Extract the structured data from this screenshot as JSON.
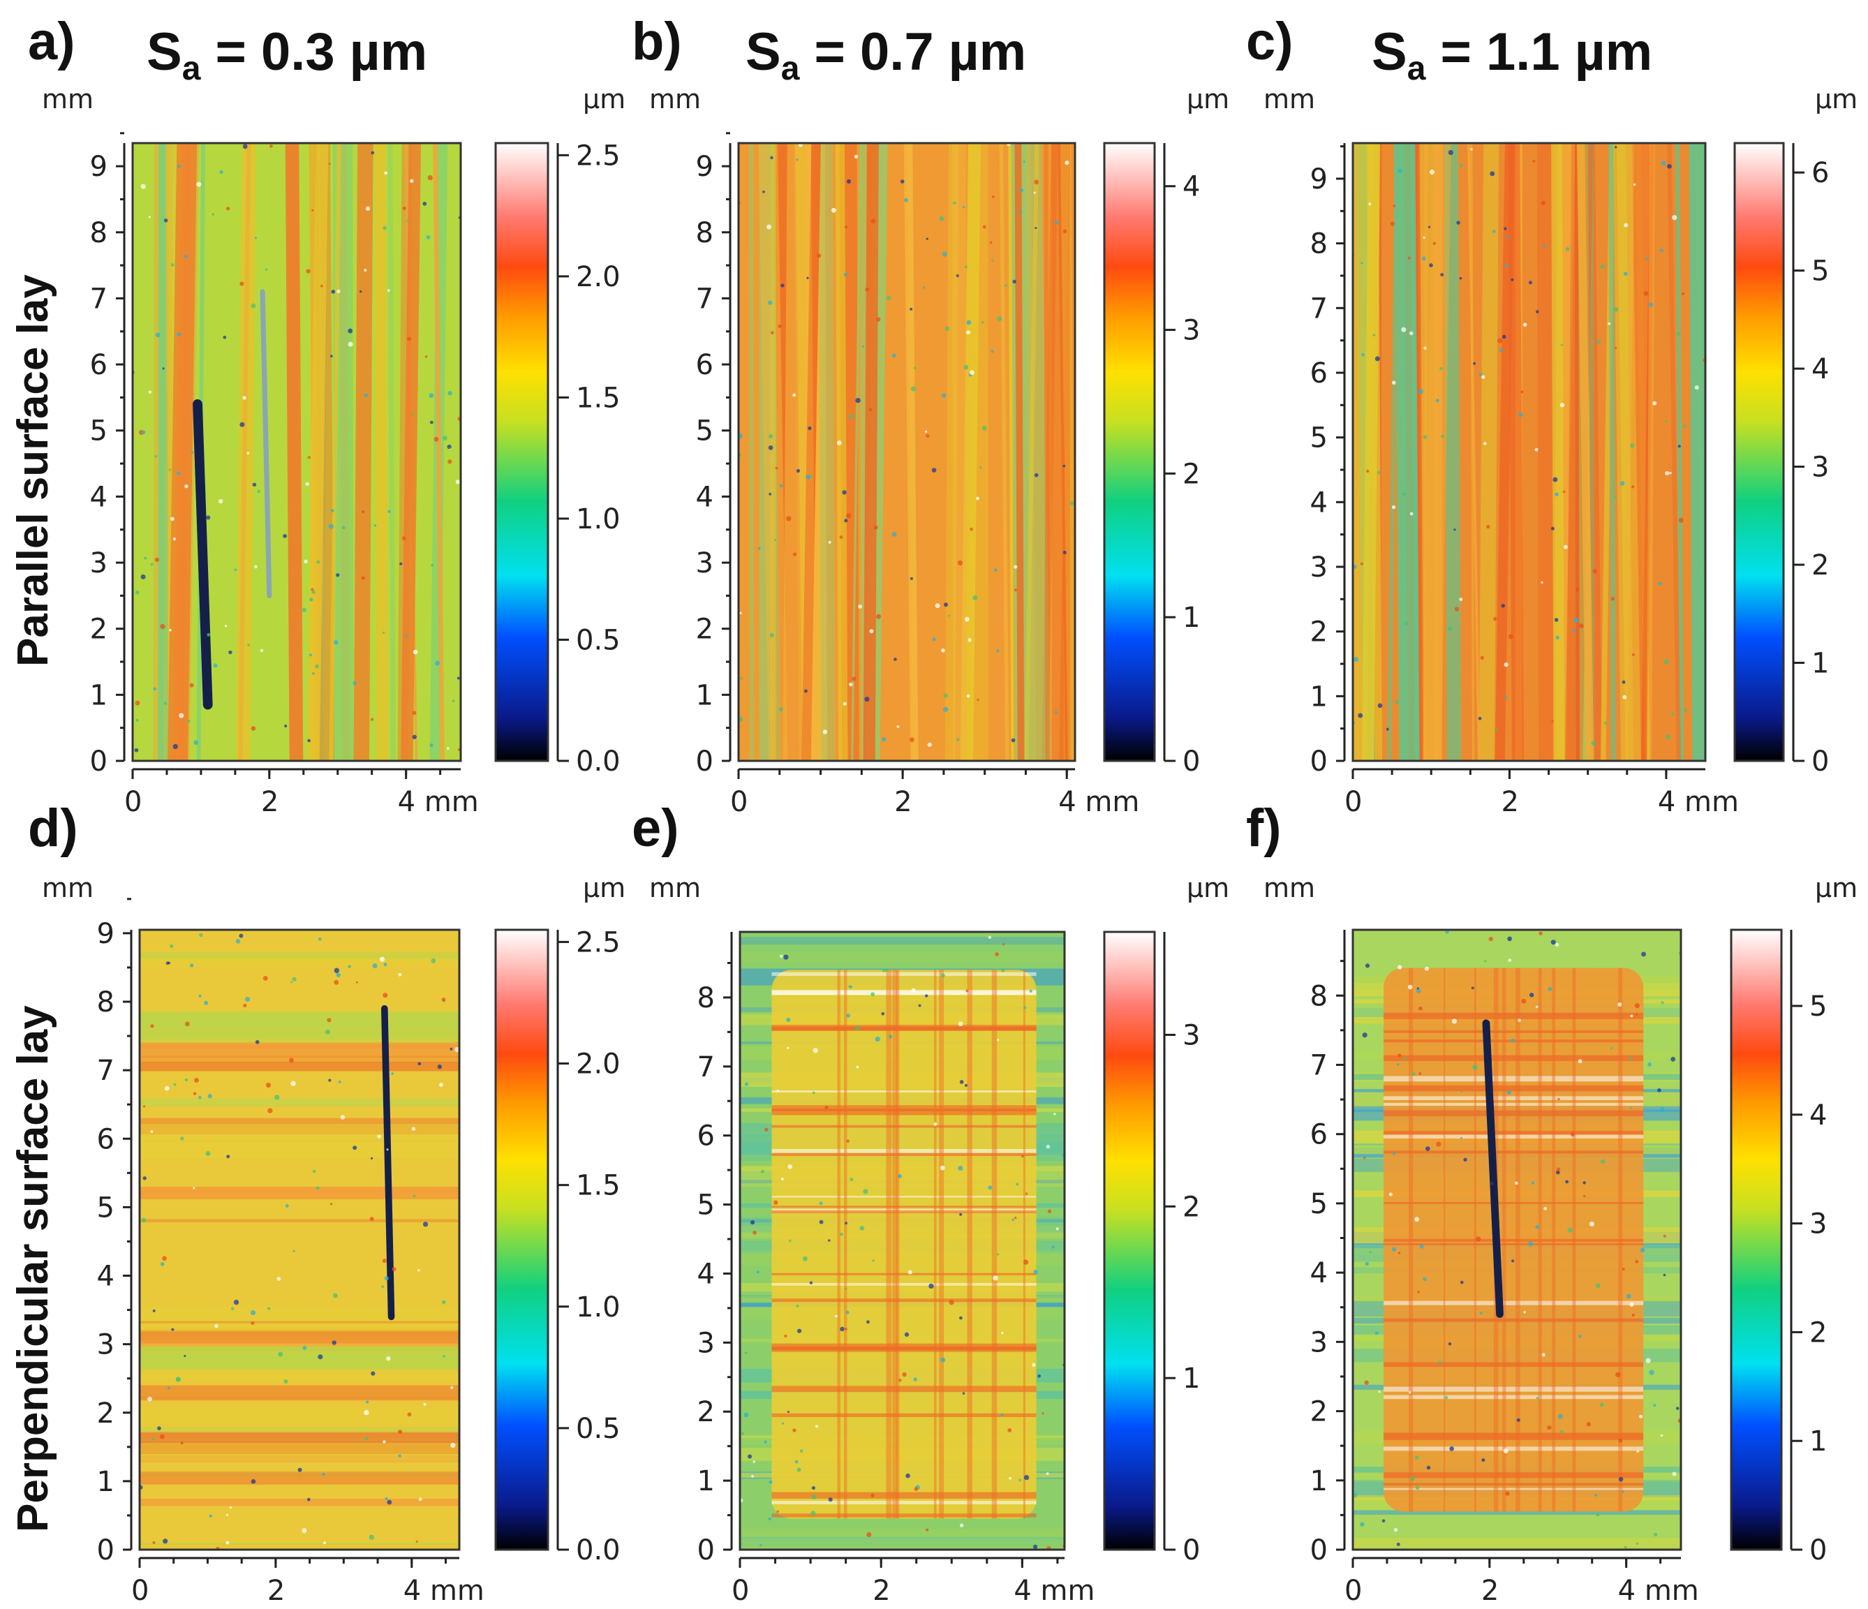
{
  "figure": {
    "row_labels": [
      "Parallel surface lay",
      "Perpendicular surface lay"
    ],
    "x_unit": "mm",
    "y_unit": "mm",
    "z_unit": "µm"
  },
  "chart_data": [
    {
      "type": "heatmap",
      "panel": "a)",
      "title": {
        "symbol": "S",
        "sub": "a",
        "rest": " = 0.3 µm"
      },
      "xlim": [
        0,
        4.8
      ],
      "ylim": [
        0,
        9.35
      ],
      "xticks": [
        "0",
        "2",
        "4 mm"
      ],
      "yticks": [
        "0",
        "1",
        "2",
        "3",
        "4",
        "5",
        "6",
        "7",
        "8",
        "9"
      ],
      "colorbar": {
        "min": 0.0,
        "max": 2.55,
        "ticks": [
          "0.0",
          "0.5",
          "1.0",
          "1.5",
          "2.0",
          "2.5"
        ],
        "tick_values": [
          0,
          0.5,
          1.0,
          1.5,
          2.0,
          2.5
        ]
      },
      "base_color": "#b6d83e",
      "features": [
        {
          "kind": "bands",
          "orientation": "vertical",
          "colors": [
            "#f07a2a",
            "#e9c12a",
            "#78d07a",
            "#f4a13a"
          ],
          "count": 28
        },
        {
          "kind": "scratch",
          "from": [
            0.95,
            5.4
          ],
          "to": [
            1.1,
            0.85
          ],
          "color": "#14204a",
          "width": 2.3
        },
        {
          "kind": "scratch",
          "from": [
            1.9,
            7.1
          ],
          "to": [
            2.0,
            2.5
          ],
          "color": "#8aa6b4",
          "width": 1.2
        }
      ]
    },
    {
      "type": "heatmap",
      "panel": "b)",
      "title": {
        "symbol": "S",
        "sub": "a",
        "rest": " = 0.7 µm"
      },
      "xlim": [
        0,
        4.1
      ],
      "ylim": [
        0,
        9.35
      ],
      "xticks": [
        "0",
        "2",
        "4 mm"
      ],
      "yticks": [
        "0",
        "1",
        "2",
        "3",
        "4",
        "5",
        "6",
        "7",
        "8",
        "9"
      ],
      "colorbar": {
        "min": 0,
        "max": 4.3,
        "ticks": [
          "0",
          "1",
          "2",
          "3",
          "4"
        ],
        "tick_values": [
          0,
          1,
          2,
          3,
          4
        ]
      },
      "base_color": "#ef9a32",
      "features": [
        {
          "kind": "bands",
          "orientation": "vertical",
          "colors": [
            "#ee6a22",
            "#e8c82c",
            "#9ac96a",
            "#f2b43a"
          ],
          "count": 40
        }
      ]
    },
    {
      "type": "heatmap",
      "panel": "c)",
      "title": {
        "symbol": "S",
        "sub": "a",
        "rest": " = 1.1 µm"
      },
      "xlim": [
        0,
        4.5
      ],
      "ylim": [
        0,
        9.55
      ],
      "xticks": [
        "0",
        "2",
        "4 mm"
      ],
      "yticks": [
        "0",
        "1",
        "2",
        "3",
        "4",
        "5",
        "6",
        "7",
        "8",
        "9"
      ],
      "colorbar": {
        "min": 0,
        "max": 6.3,
        "ticks": [
          "0",
          "1",
          "2",
          "3",
          "4",
          "5",
          "6"
        ],
        "tick_values": [
          0,
          1,
          2,
          3,
          4,
          5,
          6
        ]
      },
      "base_color": "#ec8a30",
      "features": [
        {
          "kind": "bands",
          "orientation": "vertical",
          "colors": [
            "#ee5f22",
            "#e2c82e",
            "#62c48a",
            "#f3aa36"
          ],
          "count": 44
        }
      ]
    },
    {
      "type": "heatmap",
      "panel": "d)",
      "title": null,
      "xlim": [
        0,
        4.7
      ],
      "ylim": [
        0,
        9.05
      ],
      "xticks": [
        "0",
        "2",
        "4 mm"
      ],
      "yticks": [
        "0",
        "1",
        "2",
        "3",
        "4",
        "5",
        "6",
        "7",
        "8",
        "9"
      ],
      "colorbar": {
        "min": 0.0,
        "max": 2.55,
        "ticks": [
          "0.0",
          "0.5",
          "1.0",
          "1.5",
          "2.0",
          "2.5"
        ],
        "tick_values": [
          0,
          0.5,
          1.0,
          1.5,
          2.0,
          2.5
        ]
      },
      "base_color": "#e9c93a",
      "features": [
        {
          "kind": "bands",
          "orientation": "horizontal",
          "colors": [
            "#ef7c2c",
            "#e6cf36",
            "#f29b38",
            "#b8d64a"
          ],
          "count": 40
        },
        {
          "kind": "scratch",
          "from": [
            3.6,
            7.9
          ],
          "to": [
            3.7,
            3.4
          ],
          "color": "#14204a",
          "width": 1.6
        }
      ]
    },
    {
      "type": "heatmap",
      "panel": "e)",
      "title": null,
      "xlim": [
        0,
        4.6
      ],
      "ylim": [
        0,
        8.95
      ],
      "xticks": [
        "0",
        "2",
        "4 mm"
      ],
      "yticks": [
        "0",
        "1",
        "2",
        "3",
        "4",
        "5",
        "6",
        "7",
        "8"
      ],
      "colorbar": {
        "min": 0,
        "max": 3.6,
        "ticks": [
          "0",
          "1",
          "2",
          "3"
        ],
        "tick_values": [
          0,
          1,
          2,
          3
        ]
      },
      "base_color": "#8ccf6a",
      "features": [
        {
          "kind": "bands",
          "orientation": "horizontal",
          "colors": [
            "#3f9fc8",
            "#9fd35a",
            "#62c39a",
            "#c9d84a"
          ],
          "count": 44
        },
        {
          "kind": "patch",
          "x": [
            0.45,
            4.2
          ],
          "y": [
            0.45,
            8.4
          ],
          "color": "#e9cd36"
        }
      ]
    },
    {
      "type": "heatmap",
      "panel": "f)",
      "title": null,
      "xlim": [
        0,
        4.8
      ],
      "ylim": [
        0,
        8.95
      ],
      "xticks": [
        "0",
        "2",
        "4 mm"
      ],
      "yticks": [
        "0",
        "1",
        "2",
        "3",
        "4",
        "5",
        "6",
        "7",
        "8"
      ],
      "colorbar": {
        "min": 0,
        "max": 5.7,
        "ticks": [
          "0",
          "1",
          "2",
          "3",
          "4",
          "5"
        ],
        "tick_values": [
          0,
          1,
          2,
          3,
          4,
          5
        ]
      },
      "base_color": "#a8d65e",
      "features": [
        {
          "kind": "bands",
          "orientation": "horizontal",
          "colors": [
            "#4aa6c8",
            "#b9d84e",
            "#72c68c",
            "#d8d640"
          ],
          "count": 44
        },
        {
          "kind": "patch",
          "x": [
            0.45,
            4.25
          ],
          "y": [
            0.55,
            8.4
          ],
          "color": "#ee9a34"
        },
        {
          "kind": "scratch",
          "from": [
            1.95,
            7.6
          ],
          "to": [
            2.15,
            3.4
          ],
          "color": "#14204a",
          "width": 1.8
        }
      ]
    }
  ]
}
